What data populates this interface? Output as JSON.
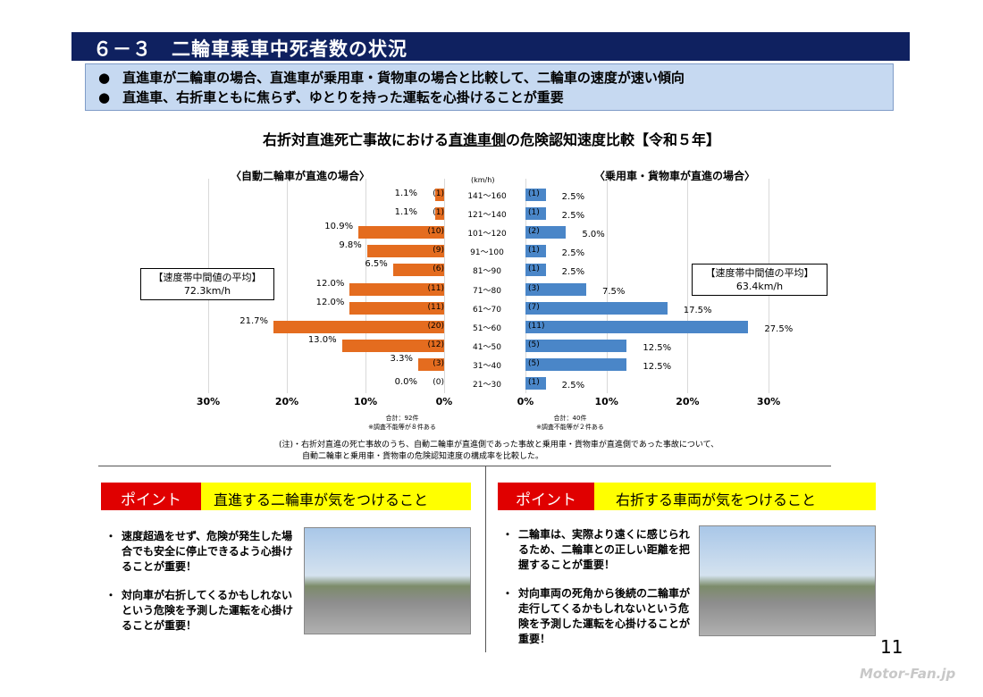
{
  "title": "６－３　二輪車乗車中死者数の状況",
  "bullets": [
    "直進車が二輪車の場合、直進車が乗用車・貨物車の場合と比較して、二輪車の速度が速い傾向",
    "直進車、右折車ともに焦らず、ゆとりを持った運転を心掛けることが重要"
  ],
  "bullet_mark": "●",
  "chart_title": {
    "pre": "右折対直進死亡事故における",
    "underlined": "直進車側",
    "post": "の危険認知速度比較【令和５年】"
  },
  "chart_data": {
    "type": "bar",
    "orientation": "horizontal-butterfly",
    "unit_label": "(km/h)",
    "categories": [
      "141～160",
      "121～140",
      "101～120",
      "91～100",
      "81～90",
      "71～80",
      "61～70",
      "51～60",
      "41～50",
      "31～40",
      "21～30"
    ],
    "series": [
      {
        "name": "〈自動二輪車が直進の場合〉",
        "color": "#e46c1f",
        "values": [
          1.1,
          1.1,
          10.9,
          9.8,
          6.5,
          12.0,
          12.0,
          21.7,
          13.0,
          3.3,
          0.0
        ],
        "labels": [
          "1.1%",
          "1.1%",
          "10.9%",
          "9.8%",
          "6.5%",
          "12.0%",
          "12.0%",
          "21.7%",
          "13.0%",
          "3.3%",
          "0.0%"
        ],
        "counts": [
          "(1)",
          "(1)",
          "(10)",
          "(9)",
          "(6)",
          "(11)",
          "(11)",
          "(20)",
          "(12)",
          "(3)",
          "(0)"
        ],
        "ticks": [
          "30%",
          "20%",
          "10%",
          "0%"
        ],
        "xlim": [
          0,
          30
        ],
        "avg_title": "【速度帯中間値の平均】",
        "avg_value": "72.3km/h",
        "total": "合計：92件",
        "footnote": "※調査不能等が８件ある"
      },
      {
        "name": "〈乗用車・貨物車が直進の場合〉",
        "color": "#4a86c8",
        "values": [
          2.5,
          2.5,
          5.0,
          2.5,
          2.5,
          7.5,
          17.5,
          27.5,
          12.5,
          12.5,
          2.5
        ],
        "labels": [
          "2.5%",
          "2.5%",
          "5.0%",
          "2.5%",
          "2.5%",
          "7.5%",
          "17.5%",
          "27.5%",
          "12.5%",
          "12.5%",
          "2.5%"
        ],
        "counts": [
          "(1)",
          "(1)",
          "(2)",
          "(1)",
          "(1)",
          "(3)",
          "(7)",
          "(11)",
          "(5)",
          "(5)",
          "(1)"
        ],
        "ticks": [
          "0%",
          "10%",
          "20%",
          "30%"
        ],
        "xlim": [
          0,
          30
        ],
        "avg_title": "【速度帯中間値の平均】",
        "avg_value": "63.4km/h",
        "total": "合計：40件",
        "footnote": "※調査不能等が２件ある"
      }
    ],
    "grid": true
  },
  "note": [
    "(注)・右折対直進の死亡事故のうち、自動二輪車が直進側であった事故と乗用車・貨物車が直進側であった事故について、",
    "自動二輪車と乗用車・貨物車の危険認知速度の構成率を比較した。"
  ],
  "points": [
    {
      "badge": "ポイント",
      "heading": "直進する二輪車が気をつけること",
      "items": [
        "速度超過をせず、危険が発生した場合でも安全に停止できるよう心掛けることが重要！",
        "対向車が右折してくるかもしれないという危険を予測した運転を心掛けることが重要！"
      ]
    },
    {
      "badge": "ポイント",
      "heading": "右折する車両が気をつけること",
      "items": [
        "二輪車は、実際より遠くに感じられるため、二輪車との正しい距離を把握することが重要！",
        "対向車両の死角から後続の二輪車が走行してくるかもしれないという危険を予測した運転を心掛けることが重要！"
      ]
    }
  ],
  "bullet_dot": "・",
  "page_number": "11",
  "watermark": "Motor-Fan.jp"
}
